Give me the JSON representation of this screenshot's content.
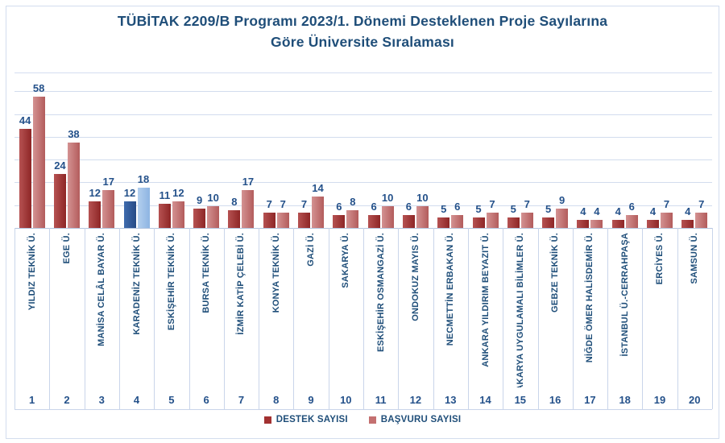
{
  "title": {
    "line1": "TÜBİTAK 2209/B Programı 2023/1. Dönemi  Desteklenen Proje Sayılarına",
    "line2": "Göre Üniversite Sıralaması"
  },
  "legend": {
    "items": [
      {
        "label": "DESTEK SAYISI",
        "color": "#a23131"
      },
      {
        "label": "BAŞVURU SAYISI",
        "color": "#c47070"
      }
    ]
  },
  "colors": {
    "destek": [
      "#b65252",
      "#8e2626"
    ],
    "basvuru": [
      "#d49292",
      "#b35c5c"
    ],
    "destek_highlight": [
      "#3f6cae",
      "#264a85"
    ],
    "basvuru_highlight": [
      "#b3cfee",
      "#8db4e2"
    ],
    "text_blue": "#1f4e79",
    "gridline": "#d2dcee"
  },
  "chart_data": {
    "type": "bar",
    "title": "TÜBİTAK 2209/B Programı 2023/1. Dönemi Desteklenen Proje Sayılarına Göre Üniversite Sıralaması",
    "categories": [
      "YILDIZ TEKNİK Ü.",
      "EGE Ü.",
      "MANİSA CELÂL BAYAR Ü.",
      "KARADENİZ TEKNİK Ü.",
      "ESKİŞEHİR TEKNİK Ü.",
      "BURSA TEKNİK Ü.",
      "İZMİR KATİP ÇELEBİ Ü.",
      "KONYA TEKNİK Ü.",
      "GAZİ Ü.",
      "SAKARYA Ü.",
      "ESKİŞEHİR OSMANGAZİ Ü.",
      "ONDOKUZ MAYIS Ü.",
      "NECMETTİN ERBAKAN Ü.",
      "ANKARA YILDIRIM BEYAZIT Ü.",
      "SAKARYA UYGULAMALI BİLİMLER Ü.",
      "GEBZE TEKNİK Ü.",
      "NİĞDE ÖMER HALİSDEMİR Ü.",
      "İSTANBUL Ü.-CERRAHPAŞA",
      "ERCİYES Ü.",
      "SAMSUN Ü."
    ],
    "ranks": [
      1,
      2,
      3,
      4,
      5,
      6,
      7,
      8,
      9,
      10,
      11,
      12,
      13,
      14,
      15,
      16,
      17,
      18,
      19,
      20
    ],
    "series": [
      {
        "name": "DESTEK SAYISI",
        "values": [
          44,
          24,
          12,
          12,
          11,
          9,
          8,
          7,
          7,
          6,
          6,
          6,
          5,
          5,
          5,
          5,
          4,
          4,
          4,
          4
        ]
      },
      {
        "name": "BAŞVURU SAYISI",
        "values": [
          58,
          38,
          17,
          18,
          12,
          10,
          17,
          7,
          14,
          8,
          10,
          10,
          6,
          7,
          7,
          9,
          4,
          6,
          7,
          7
        ]
      }
    ],
    "highlighted_category": "KARADENİZ TEKNİK Ü.",
    "highlighted_index": 3,
    "ylim": [
      0,
      68
    ],
    "gridline_interval": 10,
    "grid": true,
    "legend_position": "bottom"
  }
}
